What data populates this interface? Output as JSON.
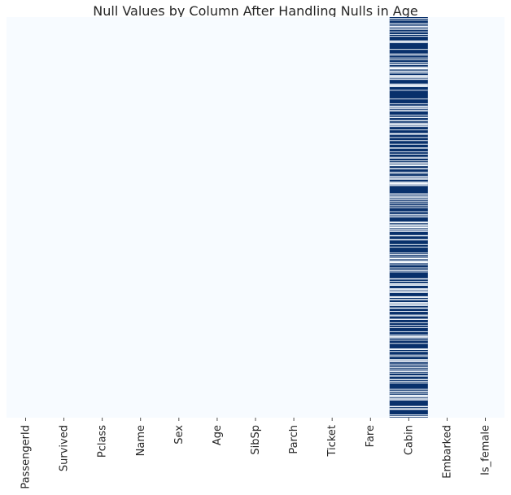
{
  "chart_data": {
    "type": "heatmap",
    "title": "Null Values by Column After Handling Nulls in Age",
    "xlabel": "",
    "ylabel": "",
    "columns": [
      "PassengerId",
      "Survived",
      "Pclass",
      "Name",
      "Sex",
      "Age",
      "SibSp",
      "Parch",
      "Ticket",
      "Fare",
      "Cabin",
      "Embarked",
      "Is_female"
    ],
    "rows": 891,
    "null_colour": "#08306b",
    "not_null_colour": "#f7fbff",
    "colorbar": false,
    "null_rows": {
      "Cabin": "687 of 891 rows null (most rows); non-null rows appear as thin white stripes",
      "other_columns": "no null values"
    }
  }
}
